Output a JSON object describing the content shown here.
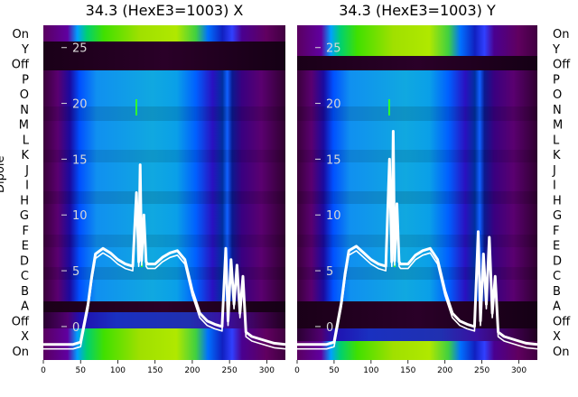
{
  "chart_data": [
    {
      "type": "heatmap",
      "title": "34.3 (HexE3=1003) X",
      "ylabel": "Dipole",
      "x_ticks": [
        0,
        50,
        100,
        150,
        200,
        250,
        300
      ],
      "xlim": [
        0,
        325
      ],
      "y_ticks": [
        0,
        5,
        10,
        15,
        20,
        25
      ],
      "ylim": [
        -3,
        27
      ],
      "row_labels": [
        "On",
        "Y",
        "Off",
        "P",
        "O",
        "N",
        "M",
        "L",
        "K",
        "J",
        "I",
        "H",
        "G",
        "F",
        "E",
        "D",
        "C",
        "B",
        "A",
        "Off",
        "X",
        "On"
      ],
      "overlay_spectrum": {
        "x": [
          0,
          10,
          20,
          30,
          40,
          50,
          60,
          65,
          70,
          80,
          90,
          100,
          110,
          120,
          125,
          128,
          130,
          132,
          135,
          138,
          140,
          150,
          160,
          170,
          180,
          190,
          200,
          210,
          220,
          230,
          240,
          245,
          248,
          252,
          256,
          260,
          264,
          268,
          272,
          280,
          290,
          300,
          310,
          325
        ],
        "y": [
          -1.6,
          -1.6,
          -1.6,
          -1.6,
          -1.6,
          -1.4,
          2.0,
          4.5,
          6.5,
          7.0,
          6.6,
          6.0,
          5.6,
          5.4,
          12,
          5.8,
          14.5,
          5.9,
          10,
          5.8,
          5.6,
          5.6,
          6.2,
          6.6,
          6.8,
          6.0,
          3.2,
          1.2,
          0.5,
          0.2,
          0.0,
          7.0,
          0.5,
          6.0,
          2.0,
          5.5,
          1.2,
          4.5,
          -0.5,
          -0.9,
          -1.1,
          -1.3,
          -1.5,
          -1.6
        ]
      }
    },
    {
      "type": "heatmap",
      "title": "34.3 (HexE3=1003) Y",
      "x_ticks": [
        0,
        50,
        100,
        150,
        200,
        250,
        300
      ],
      "xlim": [
        0,
        325
      ],
      "y_ticks": [
        0,
        5,
        10,
        15,
        20,
        25
      ],
      "ylim": [
        -3,
        27
      ],
      "row_labels": [
        "On",
        "Y",
        "Off",
        "P",
        "O",
        "N",
        "M",
        "L",
        "K",
        "J",
        "I",
        "H",
        "G",
        "F",
        "E",
        "D",
        "C",
        "B",
        "A",
        "Off",
        "X",
        "On"
      ],
      "overlay_spectrum": {
        "x": [
          0,
          10,
          20,
          30,
          40,
          50,
          60,
          65,
          70,
          80,
          90,
          100,
          110,
          120,
          125,
          128,
          130,
          132,
          135,
          138,
          140,
          150,
          160,
          170,
          180,
          190,
          200,
          210,
          220,
          230,
          240,
          245,
          248,
          252,
          256,
          260,
          264,
          268,
          272,
          280,
          290,
          300,
          310,
          325
        ],
        "y": [
          -1.6,
          -1.6,
          -1.6,
          -1.6,
          -1.6,
          -1.4,
          2.2,
          4.8,
          6.8,
          7.2,
          6.6,
          6.0,
          5.6,
          5.4,
          15,
          5.8,
          17.5,
          5.9,
          11,
          5.8,
          5.6,
          5.6,
          6.4,
          6.8,
          7.0,
          6.0,
          3.2,
          1.2,
          0.5,
          0.2,
          0.0,
          8.5,
          0.5,
          6.5,
          2.0,
          8.0,
          1.2,
          4.5,
          -0.5,
          -0.9,
          -1.1,
          -1.3,
          -1.5,
          -1.6
        ]
      }
    }
  ]
}
